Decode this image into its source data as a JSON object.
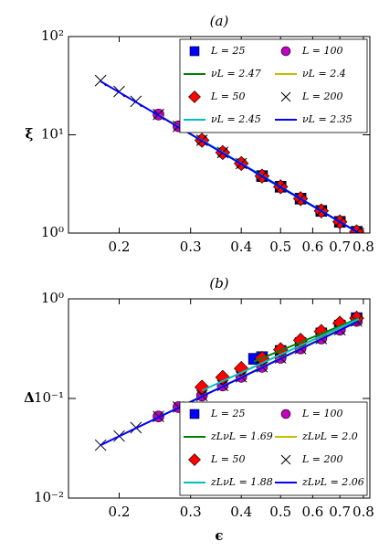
{
  "chart_data": [
    {
      "type": "loglog",
      "title": "(a)",
      "y_label": "ξ",
      "x_label": null,
      "legend": "upper right",
      "xlim": [
        0.15,
        0.83
      ],
      "xticks": [
        0.2,
        0.3,
        0.4,
        0.5,
        0.6,
        0.7,
        0.8
      ],
      "ylim": [
        1,
        100
      ],
      "yticks": [
        {
          "value": 1,
          "label": "10⁰"
        },
        {
          "value": 10,
          "label": "10¹"
        },
        {
          "value": 100,
          "label": "10²"
        }
      ],
      "series": [
        {
          "name": "L = 25",
          "kind": "marker",
          "marker": "square",
          "color": "#0000ff",
          "x": [
            0.45,
            0.5,
            0.56,
            0.63,
            0.7,
            0.77
          ],
          "values": [
            3.8,
            2.96,
            2.24,
            1.68,
            1.3,
            1.03
          ]
        },
        {
          "name": "L = 100",
          "kind": "marker",
          "marker": "circle",
          "color": "#bf00bf",
          "x": [
            0.25,
            0.28,
            0.32,
            0.36,
            0.4,
            0.45,
            0.5,
            0.56,
            0.63,
            0.7,
            0.77
          ],
          "values": [
            16.1,
            12.2,
            8.8,
            6.6,
            5.1,
            3.8,
            2.96,
            2.24,
            1.68,
            1.3,
            1.03
          ]
        },
        {
          "name": "νL = 2.47",
          "kind": "line",
          "color": "#008000",
          "x": [
            0.43,
            0.78
          ],
          "values": [
            4.2,
            1.0
          ]
        },
        {
          "name": "νL = 2.4",
          "kind": "line",
          "color": "#bfbf00",
          "x": [
            0.25,
            0.78
          ],
          "values": [
            16.0,
            1.0
          ]
        },
        {
          "name": "L = 50",
          "kind": "marker",
          "marker": "diamond",
          "color": "#ff0000",
          "x": [
            0.32,
            0.36,
            0.4,
            0.45,
            0.5,
            0.56,
            0.63,
            0.7,
            0.77
          ],
          "values": [
            8.8,
            6.6,
            5.1,
            3.8,
            2.96,
            2.24,
            1.68,
            1.3,
            1.03
          ]
        },
        {
          "name": "L = 200",
          "kind": "marker",
          "marker": "x",
          "color": "#000000",
          "x": [
            0.18,
            0.2,
            0.22,
            0.25,
            0.28,
            0.32,
            0.36,
            0.4,
            0.45,
            0.5,
            0.56,
            0.63,
            0.7,
            0.77
          ],
          "values": [
            35.7,
            27.6,
            21.9,
            16.1,
            12.2,
            8.8,
            6.6,
            5.1,
            3.8,
            2.96,
            2.24,
            1.68,
            1.3,
            1.03
          ]
        },
        {
          "name": "νL = 2.45",
          "kind": "line",
          "color": "#00bfbf",
          "x": [
            0.32,
            0.78
          ],
          "values": [
            8.8,
            1.0
          ]
        },
        {
          "name": "νL = 2.35",
          "kind": "line",
          "color": "#0000ff",
          "x": [
            0.18,
            0.78
          ],
          "values": [
            35.0,
            1.0
          ]
        }
      ]
    },
    {
      "type": "loglog",
      "title": "(b)",
      "y_label": "Δ",
      "x_label": "ϵ",
      "legend": "lower right",
      "xlim": [
        0.15,
        0.83
      ],
      "xticks": [
        0.2,
        0.3,
        0.4,
        0.5,
        0.6,
        0.7,
        0.8
      ],
      "ylim": [
        0.01,
        1
      ],
      "yticks": [
        {
          "value": 0.01,
          "label": "10⁻²"
        },
        {
          "value": 0.1,
          "label": "10⁻¹"
        },
        {
          "value": 1,
          "label": "10⁰"
        }
      ],
      "series": [
        {
          "name": "L = 25",
          "kind": "marker",
          "marker": "square",
          "color": "#0000ff",
          "x": [
            0.43,
            0.45,
            0.5,
            0.56,
            0.63,
            0.7,
            0.77
          ],
          "values": [
            0.25,
            0.26,
            0.3,
            0.36,
            0.45,
            0.54,
            0.64
          ]
        },
        {
          "name": "L = 100",
          "kind": "marker",
          "marker": "circle",
          "color": "#bf00bf",
          "x": [
            0.25,
            0.28,
            0.32,
            0.36,
            0.4,
            0.45,
            0.5,
            0.56,
            0.63,
            0.7,
            0.77
          ],
          "values": [
            0.066,
            0.082,
            0.107,
            0.135,
            0.165,
            0.208,
            0.256,
            0.318,
            0.4,
            0.49,
            0.6
          ]
        },
        {
          "name": "zLνL = 1.69",
          "kind": "line",
          "color": "#008000",
          "x": [
            0.43,
            0.78
          ],
          "values": [
            0.235,
            0.64
          ]
        },
        {
          "name": "zLνL = 2.0",
          "kind": "line",
          "color": "#bfbf00",
          "x": [
            0.25,
            0.78
          ],
          "values": [
            0.065,
            0.61
          ]
        },
        {
          "name": "L = 50",
          "kind": "marker",
          "marker": "diamond",
          "color": "#ff0000",
          "x": [
            0.32,
            0.36,
            0.4,
            0.45,
            0.5,
            0.56,
            0.63,
            0.7,
            0.77
          ],
          "values": [
            0.13,
            0.163,
            0.2,
            0.252,
            0.309,
            0.384,
            0.47,
            0.57,
            0.64
          ]
        },
        {
          "name": "L = 200",
          "kind": "marker",
          "marker": "x",
          "color": "#000000",
          "x": [
            0.18,
            0.2,
            0.22,
            0.25,
            0.28,
            0.32,
            0.36,
            0.4,
            0.45,
            0.5,
            0.56,
            0.63,
            0.7,
            0.77
          ],
          "values": [
            0.034,
            0.042,
            0.051,
            0.066,
            0.082,
            0.107,
            0.135,
            0.165,
            0.208,
            0.256,
            0.318,
            0.4,
            0.49,
            0.6
          ]
        },
        {
          "name": "zLνL = 1.88",
          "kind": "line",
          "color": "#00bfbf",
          "x": [
            0.32,
            0.78
          ],
          "values": [
            0.12,
            0.63
          ]
        },
        {
          "name": "zLνL = 2.06",
          "kind": "line",
          "color": "#0000ff",
          "x": [
            0.18,
            0.78
          ],
          "values": [
            0.034,
            0.6
          ]
        }
      ]
    }
  ]
}
